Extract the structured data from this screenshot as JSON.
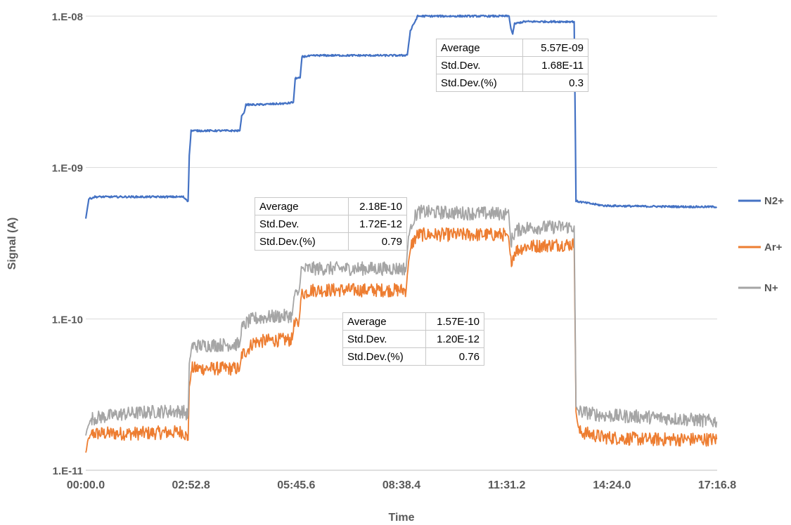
{
  "chart_data": {
    "type": "line",
    "xlabel": "Time",
    "ylabel": "Signal (A)",
    "x_ticks": [
      "00:00.0",
      "02:52.8",
      "05:45.6",
      "08:38.4",
      "11:31.2",
      "14:24.0",
      "17:16.8"
    ],
    "y_ticks": [
      "1.E-11",
      "1.E-10",
      "1.E-09",
      "1.E-08"
    ],
    "y_scale": "log",
    "ylim": [
      1e-11,
      1.1e-08
    ],
    "xlim_seconds": [
      0,
      1036.8
    ],
    "grid": "horizontal",
    "legend_position": "right",
    "series": [
      {
        "name": "N2+",
        "color": "#4472C4",
        "points": [
          [
            0,
            4.6e-10
          ],
          [
            5,
            6.2e-10
          ],
          [
            15,
            6.4e-10
          ],
          [
            100,
            6.4e-10
          ],
          [
            160,
            6.4e-10
          ],
          [
            168,
            6e-10
          ],
          [
            170,
            1.2e-09
          ],
          [
            173,
            1.75e-09
          ],
          [
            200,
            1.75e-09
          ],
          [
            240,
            1.75e-09
          ],
          [
            253,
            1.75e-09
          ],
          [
            256,
            2.2e-09
          ],
          [
            260,
            2.3e-09
          ],
          [
            263,
            2.6e-09
          ],
          [
            280,
            2.6e-09
          ],
          [
            330,
            2.65e-09
          ],
          [
            341,
            2.7e-09
          ],
          [
            344,
            3.9e-09
          ],
          [
            352,
            3.9e-09
          ],
          [
            355,
            5.4e-09
          ],
          [
            380,
            5.5e-09
          ],
          [
            450,
            5.5e-09
          ],
          [
            520,
            5.5e-09
          ],
          [
            528,
            5.55e-09
          ],
          [
            533,
            8e-09
          ],
          [
            545,
            1e-08
          ],
          [
            600,
            1e-08
          ],
          [
            660,
            1e-08
          ],
          [
            695,
            1e-08
          ],
          [
            698,
            8.3e-09
          ],
          [
            701,
            7.6e-09
          ],
          [
            704,
            8.9e-09
          ],
          [
            720,
            9.2e-09
          ],
          [
            780,
            9.2e-09
          ],
          [
            802,
            9.2e-09
          ],
          [
            805,
            6e-10
          ],
          [
            815,
            5.9e-10
          ],
          [
            850,
            5.6e-10
          ],
          [
            900,
            5.55e-10
          ],
          [
            1000,
            5.5e-10
          ],
          [
            1036,
            5.5e-10
          ]
        ]
      },
      {
        "name": "Ar+",
        "color": "#ED7D31",
        "points": [
          [
            0,
            1.3e-11
          ],
          [
            4,
            1.6e-11
          ],
          [
            10,
            1.75e-11
          ],
          [
            80,
            1.75e-11
          ],
          [
            140,
            1.78e-11
          ],
          [
            160,
            1.8e-11
          ],
          [
            168,
            1.6e-11
          ],
          [
            170,
            3.5e-11
          ],
          [
            174,
            4.7e-11
          ],
          [
            200,
            4.7e-11
          ],
          [
            253,
            4.7e-11
          ],
          [
            256,
            5.8e-11
          ],
          [
            265,
            6.2e-11
          ],
          [
            275,
            7e-11
          ],
          [
            300,
            7.2e-11
          ],
          [
            339,
            7.3e-11
          ],
          [
            342,
            9e-11
          ],
          [
            350,
            9.5e-11
          ],
          [
            354,
            1.45e-10
          ],
          [
            362,
            1.5e-10
          ],
          [
            370,
            1.55e-10
          ],
          [
            450,
            1.55e-10
          ],
          [
            526,
            1.55e-10
          ],
          [
            530,
            2.4e-10
          ],
          [
            535,
            3.1e-10
          ],
          [
            545,
            3.6e-10
          ],
          [
            620,
            3.6e-10
          ],
          [
            690,
            3.6e-10
          ],
          [
            694,
            3.5e-10
          ],
          [
            698,
            2.4e-10
          ],
          [
            705,
            2.8e-10
          ],
          [
            720,
            3e-10
          ],
          [
            780,
            3.1e-10
          ],
          [
            802,
            3.1e-10
          ],
          [
            805,
            2.4e-11
          ],
          [
            810,
            1.8e-11
          ],
          [
            850,
            1.65e-11
          ],
          [
            920,
            1.6e-11
          ],
          [
            1000,
            1.6e-11
          ],
          [
            1036,
            1.6e-11
          ]
        ]
      },
      {
        "name": "N+",
        "color": "#A5A5A5",
        "points": [
          [
            0,
            1.7e-11
          ],
          [
            4,
            2e-11
          ],
          [
            10,
            2.2e-11
          ],
          [
            60,
            2.35e-11
          ],
          [
            120,
            2.45e-11
          ],
          [
            160,
            2.45e-11
          ],
          [
            168,
            2.3e-11
          ],
          [
            170,
            5e-11
          ],
          [
            174,
            6.6e-11
          ],
          [
            200,
            6.7e-11
          ],
          [
            253,
            6.8e-11
          ],
          [
            256,
            8.6e-11
          ],
          [
            265,
            9.5e-11
          ],
          [
            275,
            1e-10
          ],
          [
            300,
            1.03e-10
          ],
          [
            339,
            1.05e-10
          ],
          [
            342,
            1.4e-10
          ],
          [
            350,
            1.5e-10
          ],
          [
            354,
            2.1e-10
          ],
          [
            365,
            2.15e-10
          ],
          [
            450,
            2.15e-10
          ],
          [
            526,
            2.15e-10
          ],
          [
            530,
            3.5e-10
          ],
          [
            535,
            4.3e-10
          ],
          [
            545,
            5.1e-10
          ],
          [
            620,
            5e-10
          ],
          [
            690,
            4.95e-10
          ],
          [
            694,
            5.2e-10
          ],
          [
            698,
            3.2e-10
          ],
          [
            705,
            3.8e-10
          ],
          [
            720,
            4e-10
          ],
          [
            780,
            4.05e-10
          ],
          [
            802,
            4.05e-10
          ],
          [
            805,
            2.6e-11
          ],
          [
            810,
            2.45e-11
          ],
          [
            850,
            2.3e-11
          ],
          [
            920,
            2.25e-11
          ],
          [
            1000,
            2.15e-11
          ],
          [
            1036,
            2.1e-11
          ]
        ]
      }
    ]
  },
  "tables": [
    {
      "rows": [
        {
          "label": "Average",
          "value": "5.57E-09"
        },
        {
          "label": "Std.Dev.",
          "value": "1.68E-11"
        },
        {
          "label": "Std.Dev.(%)",
          "value": "0.3"
        }
      ]
    },
    {
      "rows": [
        {
          "label": "Average",
          "value": "2.18E-10"
        },
        {
          "label": "Std.Dev.",
          "value": "1.72E-12"
        },
        {
          "label": "Std.Dev.(%)",
          "value": "0.79"
        }
      ]
    },
    {
      "rows": [
        {
          "label": "Average",
          "value": "1.57E-10"
        },
        {
          "label": "Std.Dev.",
          "value": "1.20E-12"
        },
        {
          "label": "Std.Dev.(%)",
          "value": "0.76"
        }
      ]
    }
  ]
}
